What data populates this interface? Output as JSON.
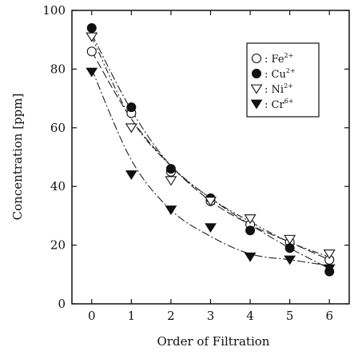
{
  "chart_data": {
    "type": "scatter",
    "title": "",
    "xlabel": "Order of Filtration",
    "ylabel": "Concentration [ppm]",
    "xlim": [
      -0.5,
      6.5
    ],
    "ylim": [
      0,
      100
    ],
    "xticks": [
      0,
      1,
      2,
      3,
      4,
      5,
      6
    ],
    "yticks": [
      0,
      20,
      40,
      60,
      80,
      100
    ],
    "grid": false,
    "legend_position": "top-right",
    "x": [
      0,
      1,
      2,
      3,
      4,
      5,
      6
    ],
    "series": [
      {
        "ion": "Fe",
        "charge": "2+",
        "marker": "open-circle",
        "values": [
          86,
          65,
          45,
          35,
          27,
          21,
          15
        ],
        "fit": [
          86,
          63,
          47,
          35,
          27,
          21,
          15
        ],
        "fit_style": "long-dash"
      },
      {
        "ion": "Cu",
        "charge": "2+",
        "marker": "filled-circle",
        "values": [
          94,
          67,
          46,
          36,
          25,
          19,
          11
        ],
        "fit": [
          92,
          66,
          47,
          36,
          27,
          19,
          12
        ],
        "fit_style": "dash-dot"
      },
      {
        "ion": "Ni",
        "charge": "2+",
        "marker": "open-triangle-down",
        "values": [
          91,
          60,
          42,
          35,
          29,
          22,
          17
        ],
        "fit": [
          91,
          63,
          47,
          36,
          28,
          21,
          16
        ],
        "fit_style": "dash-dot-dot"
      },
      {
        "ion": "Cr",
        "charge": "6+",
        "marker": "filled-triangle-down",
        "values": [
          79,
          44,
          32,
          26,
          16,
          15,
          12
        ],
        "fit": [
          80,
          49,
          32,
          23,
          17,
          15,
          13
        ],
        "fit_style": "dash-dot"
      }
    ],
    "legend_separator": ":"
  }
}
